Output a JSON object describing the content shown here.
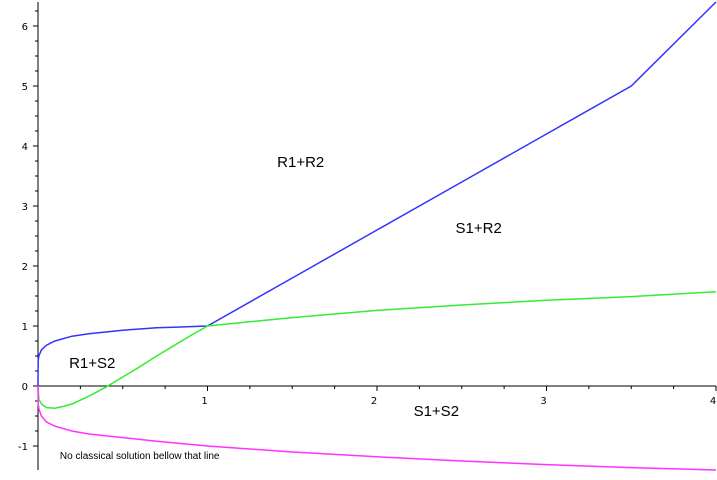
{
  "chart_data": {
    "type": "line",
    "xlim": [
      0,
      4
    ],
    "ylim": [
      -1.4,
      6.4
    ],
    "x_ticks": [
      1,
      2,
      3,
      4
    ],
    "y_ticks": [
      -1,
      0,
      1,
      2,
      3,
      4,
      5,
      6
    ],
    "x_tick_labels": [
      "1",
      "2",
      "3",
      "4"
    ],
    "y_tick_labels": [
      "-1",
      "0",
      "1",
      "2",
      "3",
      "4",
      "5",
      "6"
    ],
    "grid": false,
    "series": [
      {
        "color": "#3333ff",
        "x": [
          0.0,
          0.001,
          0.005,
          0.02,
          0.05,
          0.1,
          0.2,
          0.3,
          0.4,
          0.5,
          0.6,
          0.7,
          0.8,
          0.9,
          1.0,
          1.5,
          2.0,
          2.5,
          3.0,
          3.5,
          4.0
        ],
        "y": [
          0.0,
          0.42,
          0.5,
          0.6,
          0.68,
          0.75,
          0.83,
          0.87,
          0.9,
          0.93,
          0.95,
          0.97,
          0.98,
          0.99,
          1.0,
          1.8,
          2.6,
          3.4,
          4.2,
          5.0,
          6.4
        ]
      },
      {
        "color": "#33ee33",
        "x": [
          0.0,
          0.005,
          0.02,
          0.05,
          0.1,
          0.15,
          0.2,
          0.3,
          0.4,
          0.5,
          0.6,
          0.7,
          0.8,
          0.9,
          1.0,
          1.5,
          2.0,
          2.5,
          3.0,
          3.5,
          4.0
        ],
        "y": [
          0.0,
          -0.22,
          -0.3,
          -0.36,
          -0.37,
          -0.34,
          -0.3,
          -0.17,
          -0.02,
          0.15,
          0.32,
          0.5,
          0.67,
          0.84,
          1.0,
          1.14,
          1.26,
          1.35,
          1.43,
          1.49,
          1.57
        ]
      },
      {
        "color": "#ff33ff",
        "x": [
          0.0,
          0.001,
          0.005,
          0.02,
          0.05,
          0.1,
          0.2,
          0.3,
          0.5,
          0.7,
          1.0,
          1.5,
          2.0,
          2.5,
          3.0,
          3.5,
          4.0
        ],
        "y": [
          0.0,
          -0.28,
          -0.38,
          -0.5,
          -0.6,
          -0.67,
          -0.75,
          -0.8,
          -0.86,
          -0.92,
          -1.0,
          -1.1,
          -1.18,
          -1.25,
          -1.31,
          -1.36,
          -1.4
        ]
      }
    ],
    "annotations": [
      {
        "text": "R1+R2",
        "x": 1.55,
        "y": 3.65,
        "size": "large"
      },
      {
        "text": "S1+R2",
        "x": 2.6,
        "y": 2.55,
        "size": "large"
      },
      {
        "text": "R1+S2",
        "x": 0.32,
        "y": 0.3,
        "size": "large"
      },
      {
        "text": "S1+S2",
        "x": 2.35,
        "y": -0.5,
        "size": "large"
      },
      {
        "text": "No classical solution bellow that line",
        "x": 0.6,
        "y": -1.22,
        "size": "small"
      }
    ]
  }
}
